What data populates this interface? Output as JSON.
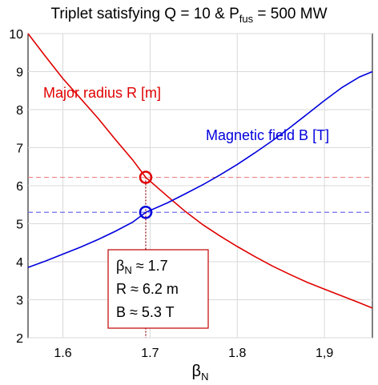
{
  "chart_data": {
    "type": "line",
    "title": {
      "prefix": "Triplet satisfying  Q = 10 & P",
      "sub": "fus",
      "suffix": " = 500 MW"
    },
    "xlabel": {
      "main": "β",
      "sub": "N"
    },
    "ylabel": "",
    "xlim": [
      1.56,
      1.955
    ],
    "ylim": [
      2,
      10
    ],
    "xticks": [
      {
        "value": 1.6,
        "label": "1.6"
      },
      {
        "value": 1.7,
        "label": "1.7"
      },
      {
        "value": 1.8,
        "label": "1.8"
      },
      {
        "value": 1.9,
        "label": "1,9"
      }
    ],
    "yticks": [
      {
        "value": 2,
        "label": "2"
      },
      {
        "value": 3,
        "label": "3"
      },
      {
        "value": 4,
        "label": "4"
      },
      {
        "value": 5,
        "label": "5"
      },
      {
        "value": 6,
        "label": "6"
      },
      {
        "value": 7,
        "label": "7"
      },
      {
        "value": 8,
        "label": "8"
      },
      {
        "value": 9,
        "label": "9"
      },
      {
        "value": 10,
        "label": "10"
      }
    ],
    "grid": true,
    "series": [
      {
        "name": "Major radius R [m]",
        "color": "#e00000",
        "x": [
          1.56,
          1.58,
          1.6,
          1.62,
          1.64,
          1.66,
          1.68,
          1.695,
          1.72,
          1.74,
          1.76,
          1.78,
          1.8,
          1.82,
          1.84,
          1.86,
          1.88,
          1.9,
          1.92,
          1.94,
          1.955
        ],
        "y": [
          10.0,
          9.4,
          8.82,
          8.3,
          7.78,
          7.22,
          6.68,
          6.22,
          5.72,
          5.33,
          4.98,
          4.68,
          4.4,
          4.14,
          3.89,
          3.67,
          3.46,
          3.28,
          3.1,
          2.92,
          2.78
        ]
      },
      {
        "name": "Magnetic field B [T]",
        "color": "#0000dd",
        "x": [
          1.56,
          1.58,
          1.6,
          1.62,
          1.64,
          1.66,
          1.68,
          1.695,
          1.72,
          1.74,
          1.76,
          1.78,
          1.8,
          1.82,
          1.84,
          1.86,
          1.88,
          1.9,
          1.92,
          1.94,
          1.955
        ],
        "y": [
          3.85,
          4.02,
          4.2,
          4.38,
          4.58,
          4.8,
          5.04,
          5.3,
          5.55,
          5.78,
          6.02,
          6.28,
          6.56,
          6.86,
          7.18,
          7.52,
          7.88,
          8.24,
          8.58,
          8.86,
          9.0
        ]
      }
    ],
    "intersection": {
      "x": 1.695,
      "R": 6.22,
      "B": 5.3
    },
    "annotations": {
      "box": [
        {
          "sym": "β",
          "sub": "N",
          "text": " ≈ 1.7"
        },
        {
          "sym": "R",
          "sub": "",
          "text": "   ≈ 6.2 m"
        },
        {
          "sym": "B",
          "sub": "",
          "text": "   ≈ 5.3 T"
        }
      ]
    }
  }
}
